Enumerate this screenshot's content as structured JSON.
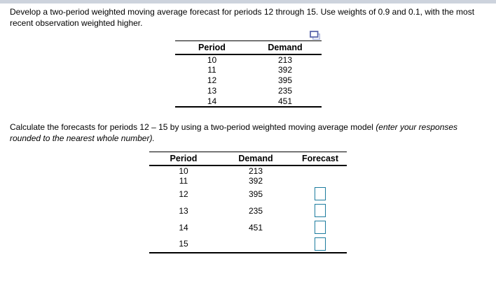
{
  "question": {
    "text": "Develop a two-period weighted moving average forecast for periods 12 through 15. Use weights of 0.9 and 0.1, with the most recent observation weighted higher."
  },
  "instruction": {
    "text_regular": "Calculate the forecasts for periods 12 – 15 by using a two-period weighted moving average model ",
    "text_italic": "(enter your responses rounded to the nearest whole number)."
  },
  "icons": {
    "popup_icon": "open-in-popup-window-icon"
  },
  "colors": {
    "top_bar": "#cdd3dd",
    "input_border": "#1d7c9e",
    "icon_front": "#5561a8",
    "icon_back": "#a9b2d8",
    "table_rule": "#000000"
  },
  "demand_table": {
    "headers": [
      "Period",
      "Demand"
    ],
    "rows": [
      [
        "10",
        "213"
      ],
      [
        "11",
        "392"
      ],
      [
        "12",
        "395"
      ],
      [
        "13",
        "235"
      ],
      [
        "14",
        "451"
      ]
    ]
  },
  "answer_table": {
    "headers": [
      "Period",
      "Demand",
      "Forecast"
    ],
    "rows": [
      {
        "period": "10",
        "demand": "213",
        "has_input": false,
        "input_value": "",
        "input_placeholder": ""
      },
      {
        "period": "11",
        "demand": "392",
        "has_input": false,
        "input_value": "",
        "input_placeholder": ""
      },
      {
        "period": "12",
        "demand": "395",
        "has_input": true,
        "input_value": "",
        "input_placeholder": ""
      },
      {
        "period": "13",
        "demand": "235",
        "has_input": true,
        "input_value": "",
        "input_placeholder": ""
      },
      {
        "period": "14",
        "demand": "451",
        "has_input": true,
        "input_value": "",
        "input_placeholder": ""
      },
      {
        "period": "15",
        "demand": "",
        "has_input": true,
        "input_value": "",
        "input_placeholder": ""
      }
    ]
  }
}
